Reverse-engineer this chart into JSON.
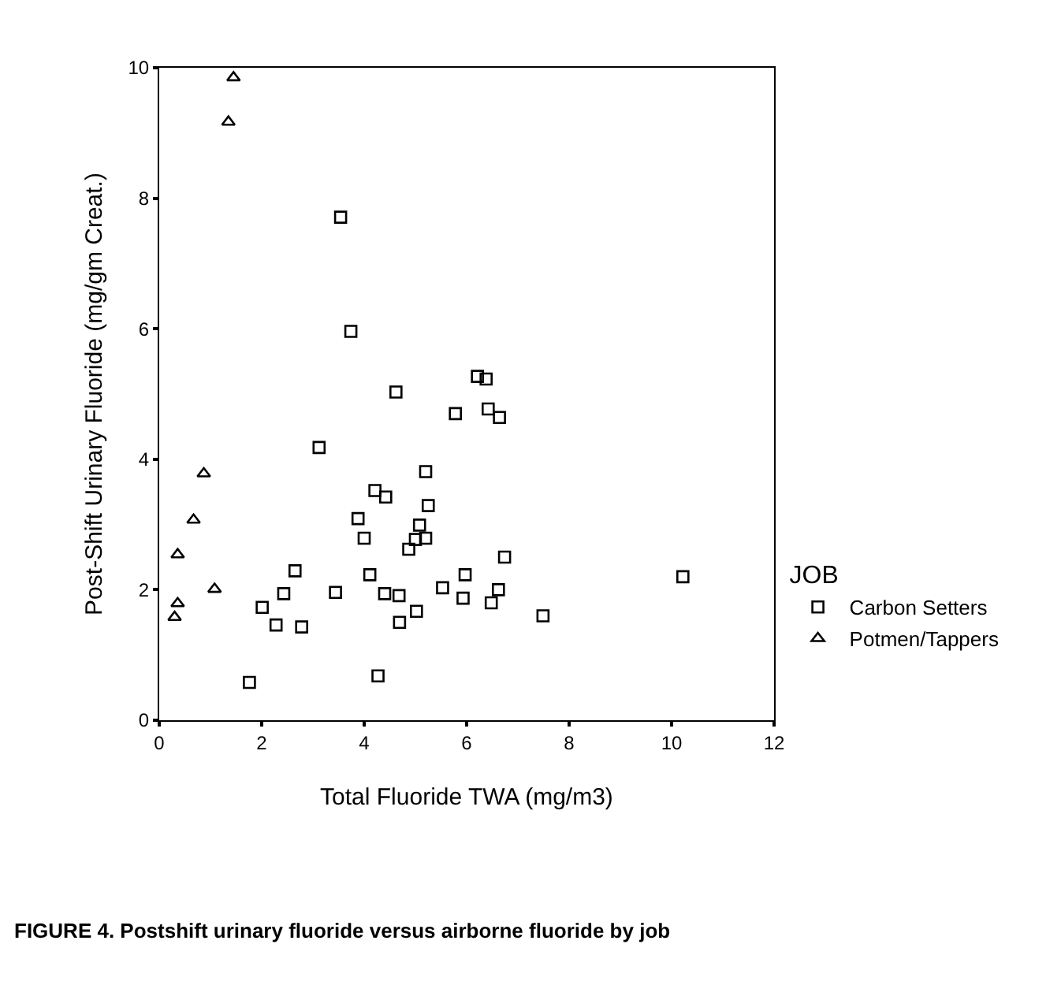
{
  "chart_data": {
    "type": "scatter",
    "xlabel": "Total Fluoride TWA (mg/m3)",
    "ylabel": "Post-Shift Urinary Fluoride (mg/gm Creat.)",
    "legend_title": "JOB",
    "legend": "right",
    "grid": false,
    "xlim": [
      0,
      12
    ],
    "xticks": [
      0,
      2,
      4,
      6,
      8,
      10,
      12
    ],
    "ylim": [
      0,
      10
    ],
    "yticks": [
      0,
      2,
      4,
      6,
      8,
      10
    ],
    "series": [
      {
        "name": "Carbon Setters",
        "color": "#000000",
        "marker": "square",
        "x": [
          3.54,
          3.74,
          4.62,
          5.78,
          3.12,
          5.2,
          4.21,
          4.42,
          5.25,
          3.88,
          5.08,
          4.0,
          5.0,
          5.2,
          4.87,
          2.65,
          4.11,
          5.53,
          3.44,
          2.43,
          4.4,
          4.68,
          2.01,
          5.02,
          2.28,
          4.69,
          2.78,
          4.27,
          1.76,
          6.21,
          6.38,
          6.42,
          6.64,
          6.74,
          5.97,
          10.22,
          6.62,
          5.93,
          6.48,
          7.49
        ],
        "values": [
          7.71,
          5.96,
          5.03,
          4.7,
          4.18,
          3.81,
          3.52,
          3.42,
          3.29,
          3.09,
          2.99,
          2.79,
          2.77,
          2.79,
          2.62,
          2.29,
          2.23,
          2.03,
          1.96,
          1.94,
          1.94,
          1.91,
          1.73,
          1.67,
          1.46,
          1.5,
          1.43,
          0.68,
          0.58,
          5.27,
          5.23,
          4.77,
          4.64,
          2.5,
          2.23,
          2.2,
          2.0,
          1.87,
          1.8,
          1.6
        ]
      },
      {
        "name": "Potmen/Tappers",
        "color": "#000000",
        "marker": "triangle",
        "x": [
          1.45,
          1.35,
          0.87,
          0.67,
          0.36,
          1.08,
          0.36,
          0.3
        ],
        "values": [
          9.85,
          9.17,
          3.78,
          3.07,
          2.54,
          2.01,
          1.79,
          1.58
        ]
      }
    ],
    "annotations": [
      "FIGURE 4. Postshift urinary fluoride versus airborne fluoride by job"
    ]
  }
}
